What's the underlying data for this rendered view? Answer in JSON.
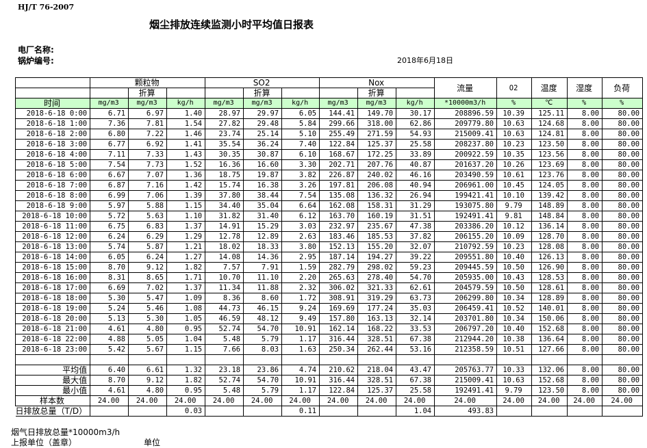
{
  "standard": "HJ/T  76-2007",
  "title": "烟尘排放连续监测小时平均值日报表",
  "plant_label": "电厂名称:",
  "boiler_label": "锅炉编号:",
  "date": "2018年6月18日",
  "header": {
    "groups": [
      "颗粒物",
      "SO2",
      "Nox"
    ],
    "converted": "折算",
    "flow": "流量",
    "o2": "O2",
    "temp": "温度",
    "humidity": "湿度",
    "load": "负荷",
    "time": "时间",
    "units": [
      "mg/m3",
      "mg/m3",
      "kg/h",
      "mg/m3",
      "mg/m3",
      "kg/h",
      "mg/m3",
      "mg/m3",
      "kg/h",
      "*10000m3/h",
      "%",
      "℃",
      "%",
      "%"
    ]
  },
  "rows": [
    [
      "2018-6-18 0:00",
      "6.71",
      "6.97",
      "1.40",
      "28.97",
      "29.97",
      "6.05",
      "144.41",
      "149.70",
      "30.17",
      "208896.59",
      "10.39",
      "125.11",
      "8.00",
      "80.00"
    ],
    [
      "2018-6-18 1:00",
      "7.36",
      "7.81",
      "1.54",
      "27.82",
      "29.48",
      "5.84",
      "299.66",
      "318.00",
      "62.86",
      "209779.80",
      "10.63",
      "124.68",
      "8.00",
      "80.00"
    ],
    [
      "2018-6-18 2:00",
      "6.80",
      "7.22",
      "1.46",
      "23.74",
      "25.14",
      "5.10",
      "255.49",
      "271.59",
      "54.93",
      "215009.41",
      "10.63",
      "124.81",
      "8.00",
      "80.00"
    ],
    [
      "2018-6-18 3:00",
      "6.77",
      "6.92",
      "1.41",
      "35.54",
      "36.24",
      "7.40",
      "122.84",
      "125.37",
      "25.58",
      "208237.80",
      "10.23",
      "123.50",
      "8.00",
      "80.00"
    ],
    [
      "2018-6-18 4:00",
      "7.11",
      "7.33",
      "1.43",
      "30.35",
      "30.87",
      "6.10",
      "168.67",
      "172.25",
      "33.89",
      "200922.59",
      "10.35",
      "123.56",
      "8.00",
      "80.00"
    ],
    [
      "2018-6-18 5:00",
      "7.54",
      "7.73",
      "1.52",
      "16.36",
      "16.60",
      "3.30",
      "202.71",
      "207.76",
      "40.87",
      "201637.20",
      "10.26",
      "123.69",
      "8.00",
      "80.00"
    ],
    [
      "2018-6-18 6:00",
      "6.67",
      "7.07",
      "1.36",
      "18.75",
      "19.87",
      "3.82",
      "226.87",
      "240.02",
      "46.16",
      "203490.59",
      "10.61",
      "123.76",
      "8.00",
      "80.00"
    ],
    [
      "2018-6-18 7:00",
      "6.87",
      "7.16",
      "1.42",
      "15.74",
      "16.38",
      "3.26",
      "197.81",
      "206.08",
      "40.94",
      "206961.00",
      "10.45",
      "124.05",
      "8.00",
      "80.00"
    ],
    [
      "2018-6-18 8:00",
      "6.99",
      "7.06",
      "1.39",
      "37.80",
      "38.44",
      "7.54",
      "135.08",
      "136.32",
      "26.94",
      "199421.41",
      "10.10",
      "139.42",
      "8.00",
      "80.00"
    ],
    [
      "2018-6-18 9:00",
      "5.97",
      "5.88",
      "1.15",
      "34.40",
      "35.04",
      "6.64",
      "162.08",
      "158.31",
      "31.29",
      "193075.80",
      "9.79",
      "148.89",
      "8.00",
      "80.00"
    ],
    [
      "2018-6-18 10:00",
      "5.72",
      "5.63",
      "1.10",
      "31.82",
      "31.40",
      "6.12",
      "163.70",
      "160.19",
      "31.51",
      "192491.41",
      "9.81",
      "148.84",
      "8.00",
      "80.00"
    ],
    [
      "2018-6-18 11:00",
      "6.75",
      "6.83",
      "1.37",
      "14.91",
      "15.29",
      "3.03",
      "232.97",
      "235.67",
      "47.38",
      "203386.20",
      "10.12",
      "136.14",
      "8.00",
      "80.00"
    ],
    [
      "2018-6-18 12:00",
      "6.24",
      "6.29",
      "1.29",
      "12.78",
      "12.89",
      "2.63",
      "183.46",
      "185.53",
      "37.82",
      "206155.20",
      "10.09",
      "128.70",
      "8.00",
      "80.00"
    ],
    [
      "2018-6-18 13:00",
      "5.74",
      "5.87",
      "1.21",
      "18.02",
      "18.33",
      "3.80",
      "152.13",
      "155.20",
      "32.07",
      "210792.59",
      "10.23",
      "128.08",
      "8.00",
      "80.00"
    ],
    [
      "2018-6-18 14:00",
      "6.05",
      "6.24",
      "1.27",
      "14.08",
      "14.36",
      "2.95",
      "187.14",
      "194.27",
      "39.22",
      "209551.80",
      "10.40",
      "126.13",
      "8.00",
      "80.00"
    ],
    [
      "2018-6-18 15:00",
      "8.70",
      "9.12",
      "1.82",
      "7.57",
      "7.91",
      "1.59",
      "282.79",
      "298.02",
      "59.23",
      "209445.59",
      "10.50",
      "126.90",
      "8.00",
      "80.00"
    ],
    [
      "2018-6-18 16:00",
      "8.31",
      "8.65",
      "1.71",
      "10.70",
      "11.10",
      "2.20",
      "265.63",
      "278.40",
      "54.70",
      "205935.00",
      "10.43",
      "128.53",
      "8.00",
      "80.00"
    ],
    [
      "2018-6-18 17:00",
      "6.69",
      "7.02",
      "1.37",
      "11.34",
      "11.88",
      "2.32",
      "306.02",
      "321.33",
      "62.61",
      "204579.59",
      "10.50",
      "128.61",
      "8.00",
      "80.00"
    ],
    [
      "2018-6-18 18:00",
      "5.30",
      "5.47",
      "1.09",
      "8.36",
      "8.60",
      "1.72",
      "308.91",
      "319.29",
      "63.73",
      "206299.80",
      "10.34",
      "128.89",
      "8.00",
      "80.00"
    ],
    [
      "2018-6-18 19:00",
      "5.24",
      "5.46",
      "1.08",
      "44.73",
      "46.15",
      "9.24",
      "169.69",
      "177.24",
      "35.03",
      "206459.41",
      "10.52",
      "140.01",
      "8.00",
      "80.00"
    ],
    [
      "2018-6-18 20:00",
      "5.13",
      "5.30",
      "1.05",
      "46.59",
      "48.12",
      "9.49",
      "157.80",
      "163.13",
      "32.14",
      "203701.80",
      "10.34",
      "150.06",
      "8.00",
      "80.00"
    ],
    [
      "2018-6-18 21:00",
      "4.61",
      "4.80",
      "0.95",
      "52.74",
      "54.70",
      "10.91",
      "162.14",
      "168.22",
      "33.53",
      "206797.20",
      "10.40",
      "152.68",
      "8.00",
      "80.00"
    ],
    [
      "2018-6-18 22:00",
      "4.88",
      "5.05",
      "1.04",
      "5.48",
      "5.79",
      "1.17",
      "316.44",
      "328.51",
      "67.38",
      "212944.20",
      "10.38",
      "136.64",
      "8.00",
      "80.00"
    ],
    [
      "2018-6-18 23:00",
      "5.42",
      "5.67",
      "1.15",
      "7.66",
      "8.03",
      "1.63",
      "250.34",
      "262.44",
      "53.16",
      "212358.59",
      "10.51",
      "127.66",
      "8.00",
      "80.00"
    ]
  ],
  "stats": [
    [
      "平均值",
      "6.40",
      "6.61",
      "1.32",
      "23.18",
      "23.86",
      "4.74",
      "210.62",
      "218.04",
      "43.47",
      "205763.77",
      "10.33",
      "132.06",
      "8.00",
      "80.00"
    ],
    [
      "最大值",
      "8.70",
      "9.12",
      "1.82",
      "52.74",
      "54.70",
      "10.91",
      "316.44",
      "328.51",
      "67.38",
      "215009.41",
      "10.63",
      "152.68",
      "8.00",
      "80.00"
    ],
    [
      "最小值",
      "4.61",
      "4.80",
      "0.95",
      "5.48",
      "5.79",
      "1.17",
      "122.84",
      "125.37",
      "25.58",
      "192491.41",
      "9.79",
      "123.50",
      "8.00",
      "80.00"
    ],
    [
      "样本数",
      "24.00",
      "24.00",
      "24.00",
      "24.00",
      "24.00",
      "24.00",
      "24.00",
      "24.00",
      "24.00",
      "24.00",
      "24.00",
      "24.00",
      "24.00",
      "24.00"
    ]
  ],
  "total": [
    "日排放总量（T/D）",
    "",
    "",
    "0.03",
    "",
    "",
    "0.11",
    "",
    "",
    "1.04",
    "493.83",
    "",
    "",
    "",
    ""
  ],
  "footer": {
    "flue_gas_total": "烟气日排放总量*10000m3/h",
    "reporting_unit": "上报单位（盖章）",
    "unit": "单位"
  }
}
